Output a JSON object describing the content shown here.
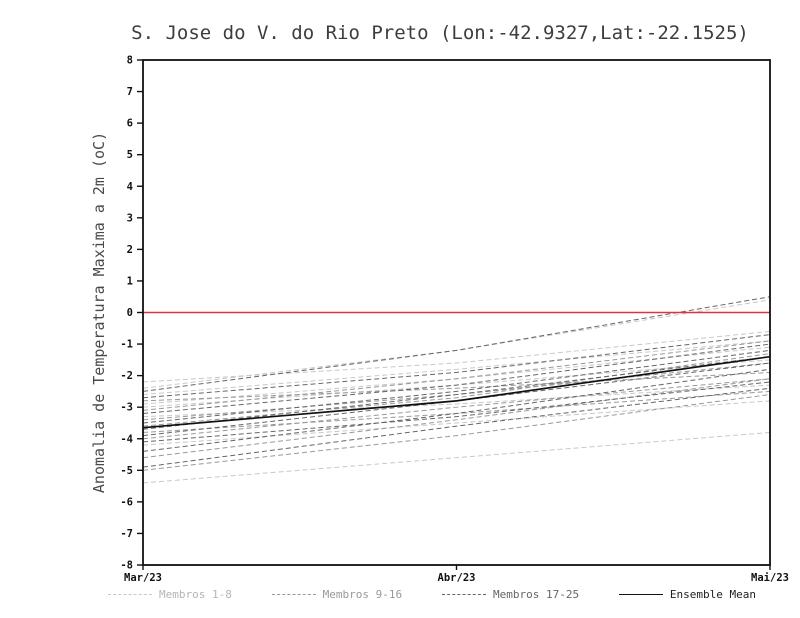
{
  "title": "S. Jose do V. do Rio Preto (Lon:-42.9327,Lat:-22.1525)",
  "chart_data": {
    "type": "line",
    "title": "S. Jose do V. do Rio Preto (Lon:-42.9327,Lat:-22.1525)",
    "xlabel": "",
    "ylabel": "Anomalia de Temperatura Maxima a 2m (oC)",
    "x_ticks": [
      "Mar/23",
      "Abr/23",
      "Mai/23"
    ],
    "ylim": [
      -8,
      8
    ],
    "y_tick_step": 1,
    "grid": false,
    "legend_position": "bottom",
    "zero_line": {
      "y": 0,
      "color": "#e23434"
    },
    "groups": [
      {
        "name": "Membros 1-8",
        "color": "#c8c8c8",
        "dash": "5 3",
        "series": [
          [
            -2.6,
            -1.8,
            -0.9
          ],
          [
            -3.0,
            -2.3,
            -1.5
          ],
          [
            -2.2,
            -1.6,
            -0.6
          ],
          [
            -3.3,
            -2.9,
            -2.3
          ],
          [
            -4.2,
            -3.5,
            -2.8
          ],
          [
            -5.4,
            -4.6,
            -3.8
          ],
          [
            -2.9,
            -2.1,
            -1.1
          ],
          [
            -2.4,
            -1.2,
            0.4
          ]
        ]
      },
      {
        "name": "Membros 9-16",
        "color": "#999999",
        "dash": "5 3",
        "series": [
          [
            -3.4,
            -2.6,
            -1.6
          ],
          [
            -4.6,
            -3.4,
            -2.1
          ],
          [
            -2.8,
            -2.4,
            -1.9
          ],
          [
            -5.0,
            -3.9,
            -2.6
          ],
          [
            -3.1,
            -2.1,
            -0.9
          ],
          [
            -4.0,
            -3.0,
            -2.1
          ],
          [
            -3.6,
            -2.7,
            -1.3
          ],
          [
            -3.8,
            -3.2,
            -2.5
          ]
        ]
      },
      {
        "name": "Membros 17-25",
        "color": "#666666",
        "dash": "5 3",
        "series": [
          [
            -3.5,
            -2.5,
            -1.2
          ],
          [
            -4.4,
            -3.2,
            -1.8
          ],
          [
            -2.7,
            -1.9,
            -0.7
          ],
          [
            -4.9,
            -3.6,
            -2.4
          ],
          [
            -3.2,
            -2.3,
            -1.0
          ],
          [
            -3.9,
            -2.8,
            -1.6
          ],
          [
            -2.5,
            -1.2,
            0.5
          ],
          [
            -4.1,
            -3.3,
            -2.2
          ],
          [
            -3.7,
            -2.6,
            -1.4
          ]
        ]
      }
    ],
    "mean": {
      "name": "Ensemble Mean",
      "color": "#111111",
      "values": [
        -3.65,
        -2.8,
        -1.4
      ]
    }
  }
}
